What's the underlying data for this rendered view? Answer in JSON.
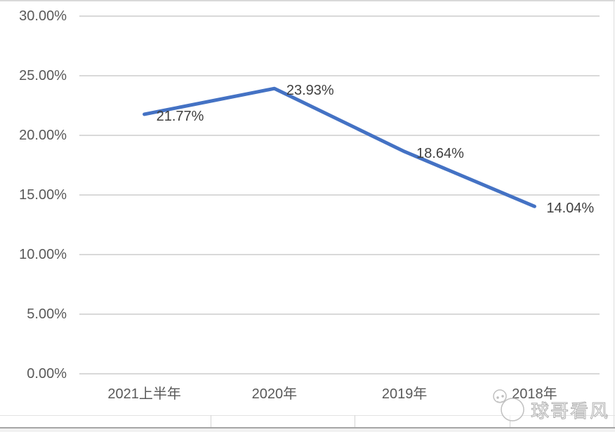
{
  "chart_data": {
    "type": "line",
    "title": "",
    "xlabel": "",
    "ylabel": "",
    "categories": [
      "2021上半年",
      "2020年",
      "2019年",
      "2018年"
    ],
    "values": [
      21.77,
      23.93,
      18.64,
      14.04
    ],
    "data_labels": [
      "21.77%",
      "23.93%",
      "18.64%",
      "14.04%"
    ],
    "y_ticks": [
      {
        "value": 30,
        "label": "30.00%"
      },
      {
        "value": 25,
        "label": "25.00%"
      },
      {
        "value": 20,
        "label": "20.00%"
      },
      {
        "value": 15,
        "label": "15.00%"
      },
      {
        "value": 10,
        "label": "10.00%"
      },
      {
        "value": 5,
        "label": "5.00%"
      },
      {
        "value": 0,
        "label": "0.00%"
      }
    ],
    "ylim": [
      0,
      30
    ],
    "grid": true,
    "legend": false,
    "colors": {
      "line": "#4472C4",
      "gridline": "#d9d9d9",
      "axis_text": "#595959",
      "data_label_text": "#3f3f3f"
    }
  },
  "watermark": {
    "text": "球哥看风",
    "logo": "cartoon-mascot-logo"
  }
}
